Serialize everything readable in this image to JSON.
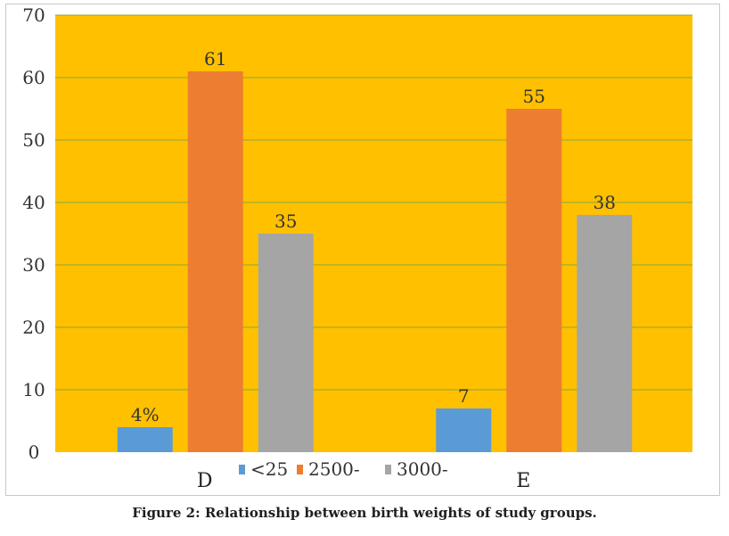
{
  "caption": "Figure 2: Relationship between birth weights of study groups.",
  "colors": {
    "plot_background": "#FFC000",
    "gridline": "#8AA63A",
    "series": [
      "#5B9BD5",
      "#ED7D31",
      "#A5A5A5"
    ]
  },
  "chart_data": {
    "type": "bar",
    "categories": [
      "D",
      "E"
    ],
    "series": [
      {
        "name": "<25",
        "values": [
          4,
          7
        ],
        "labels": [
          "4%",
          "7"
        ]
      },
      {
        "name": "2500-",
        "values": [
          61,
          55
        ],
        "labels": [
          "61",
          "55"
        ]
      },
      {
        "name": "3000-",
        "values": [
          35,
          38
        ],
        "labels": [
          "35",
          "38"
        ]
      }
    ],
    "ylim": [
      0,
      70
    ],
    "yticks": [
      0,
      10,
      20,
      30,
      40,
      50,
      60,
      70
    ],
    "grid": true,
    "legend_position": "bottom"
  }
}
